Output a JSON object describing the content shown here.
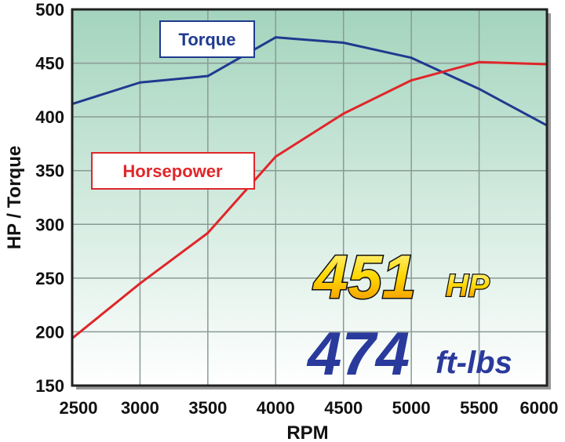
{
  "chart_data": {
    "type": "line",
    "xlabel": "RPM",
    "ylabel": "HP / Torque",
    "xlim": [
      2500,
      6000
    ],
    "ylim": [
      150,
      500
    ],
    "x": [
      2500,
      3000,
      3500,
      4000,
      4500,
      5000,
      5500,
      6000
    ],
    "xticks": [
      "2500",
      "3000",
      "3500",
      "4000",
      "4500",
      "5000",
      "5500",
      "6000"
    ],
    "yticks": [
      "150",
      "200",
      "250",
      "300",
      "350",
      "400",
      "450",
      "500"
    ],
    "grid": true,
    "series": [
      {
        "name": "Torque",
        "color": "#1f3a8f",
        "values": [
          412,
          432,
          438,
          474,
          469,
          455,
          426,
          392
        ]
      },
      {
        "name": "Horsepower",
        "color": "#e0262a",
        "values": [
          194,
          245,
          292,
          363,
          403,
          434,
          451,
          449
        ]
      }
    ],
    "annotations": {
      "hp_value": "451",
      "hp_unit": "HP",
      "torque_value": "474",
      "torque_unit": "ft-lbs"
    },
    "background": {
      "top": "#a3d4bd",
      "bottom": "#ffffff"
    }
  }
}
